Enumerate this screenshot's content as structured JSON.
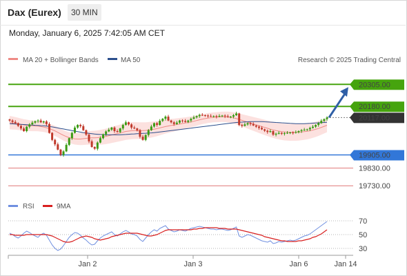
{
  "header": {
    "instrument": "Dax (Eurex)",
    "timeframe": "30 MIN",
    "datetime": "Monday, January 6, 2025 7:42:05 AM CET",
    "copyright": "Research © 2025 Trading Central"
  },
  "colors": {
    "up": "#3a9b14",
    "down": "#c0392b",
    "ma20": "#ef8a85",
    "bands": "#f9c9c5",
    "ma50": "#2b4e8c",
    "resistance": "#46a40e",
    "support_main": "#3277d8",
    "support_minor": "#e07777",
    "price_tag": "#333333",
    "rsi": "#6f8fe0",
    "rsi_ma": "#d81f1f",
    "arrow": "#2f5fa6"
  },
  "chart_data": [
    {
      "type": "candlestick",
      "title": "Dax (Eurex)",
      "timeframe": "30 MIN",
      "x_ticks": [
        "Jan 2",
        "Jan 3",
        "Jan 6",
        "Jan 14"
      ],
      "ylim": [
        19680,
        20400
      ],
      "legend": [
        "MA 20 + Bollinger Bands",
        "MA 50"
      ],
      "legend_position": "top-left",
      "levels": [
        {
          "label": "20305.00",
          "value": 20305,
          "kind": "resistance"
        },
        {
          "label": "20180.00",
          "value": 20180,
          "kind": "resistance"
        },
        {
          "label": "20117.00",
          "value": 20117,
          "kind": "current"
        },
        {
          "label": "19905.00",
          "value": 19905,
          "kind": "support_main"
        },
        {
          "label": "19830.00",
          "value": 19830,
          "kind": "support_minor"
        },
        {
          "label": "19730.00",
          "value": 19730,
          "kind": "support_minor"
        }
      ],
      "close": [
        20100,
        20092,
        20085,
        20070,
        20055,
        20040,
        20065,
        20078,
        20088,
        20096,
        20100,
        20090,
        20095,
        20080,
        20030,
        19990,
        19965,
        19935,
        19905,
        19925,
        19962,
        20000,
        20030,
        20060,
        20075,
        20068,
        20045,
        20020,
        19982,
        19950,
        19940,
        19975,
        20000,
        20022,
        20038,
        20048,
        20060,
        20040,
        20035,
        20055,
        20075,
        20090,
        20078,
        20060,
        20055,
        20045,
        20008,
        19990,
        20018,
        20045,
        20066,
        20085,
        20075,
        20098,
        20110,
        20122,
        20100,
        20090,
        20080,
        20088,
        20100,
        20098,
        20092,
        20100,
        20110,
        20118,
        20125,
        20132,
        20130,
        20128,
        20126,
        20124,
        20125,
        20122,
        20126,
        20128,
        20124,
        20120,
        20122,
        20130,
        20140,
        20075,
        20070,
        20078,
        20085,
        20080,
        20072,
        20065,
        20058,
        20050,
        20042,
        20035,
        20040,
        20020,
        20025,
        20030,
        20025,
        20028,
        20030,
        20032,
        20030,
        20034,
        20040,
        20045,
        20048,
        20050,
        20058,
        20065,
        20075,
        20085,
        20098,
        20108,
        20117
      ],
      "ma20": [
        20088,
        20086,
        20084,
        20081,
        20078,
        20075,
        20073,
        20071,
        20070,
        20069,
        20068,
        20066,
        20063,
        20059,
        20054,
        20048,
        20041,
        20033,
        20024,
        20016,
        20009,
        20003,
        19999,
        19996,
        19995,
        19995,
        19997,
        19999,
        20001,
        20002,
        20002,
        20003,
        20005,
        20007,
        20010,
        20014,
        20018,
        20022,
        20026,
        20030,
        20034,
        20038,
        20040,
        20042,
        20043,
        20043,
        20043,
        20043,
        20044,
        20046,
        20048,
        20051,
        20054,
        20058,
        20062,
        20066,
        20069,
        20072,
        20074,
        20077,
        20080,
        20083,
        20086,
        20089,
        20092,
        20096,
        20100,
        20104,
        20108,
        20111,
        20114,
        20116,
        20118,
        20119,
        20120,
        20121,
        20121,
        20120,
        20118,
        20115,
        20111,
        20106,
        20101,
        20096,
        20091,
        20086,
        20081,
        20076,
        20071,
        20066,
        20061,
        20056,
        20051,
        20047,
        20043,
        20040,
        20037,
        20035,
        20034,
        20033,
        20033,
        20033,
        20034,
        20035,
        20037,
        20039,
        20042,
        20046,
        20050,
        20055,
        20061,
        20067,
        20073
      ],
      "ma50": [
        20082,
        20081,
        20080,
        20079,
        20078,
        20077,
        20076,
        20075,
        20074,
        20073,
        20072,
        20071,
        20070,
        20068,
        20066,
        20064,
        20061,
        20058,
        20055,
        20052,
        20049,
        20046,
        20043,
        20040,
        20037,
        20034,
        20031,
        20029,
        20027,
        20025,
        20023,
        20022,
        20021,
        20020,
        20019,
        20019,
        20019,
        20019,
        20019,
        20019,
        20020,
        20021,
        20022,
        20023,
        20024,
        20025,
        20026,
        20027,
        20028,
        20029,
        20030,
        20031,
        20033,
        20035,
        20037,
        20039,
        20041,
        20043,
        20045,
        20047,
        20049,
        20051,
        20053,
        20055,
        20057,
        20059,
        20061,
        20063,
        20065,
        20067,
        20069,
        20071,
        20073,
        20075,
        20077,
        20079,
        20081,
        20083,
        20085,
        20087,
        20089,
        20090,
        20091,
        20092,
        20093,
        20094,
        20094,
        20094,
        20094,
        20094,
        20093,
        20092,
        20091,
        20090,
        20089,
        20088,
        20087,
        20086,
        20085,
        20084,
        20083,
        20082,
        20082,
        20082,
        20082,
        20083,
        20084,
        20085,
        20086,
        20087,
        20088,
        20089,
        20090
      ]
    },
    {
      "type": "line",
      "title": "RSI",
      "legend": [
        "RSI",
        "9MA"
      ],
      "ylim": [
        20,
        80
      ],
      "y_ticks": [
        70,
        50,
        30
      ],
      "rsi": [
        52,
        50,
        47,
        45,
        48,
        52,
        55,
        53,
        50,
        48,
        46,
        50,
        52,
        49,
        42,
        35,
        30,
        27,
        29,
        34,
        40,
        46,
        50,
        53,
        52,
        49,
        45,
        42,
        38,
        35,
        36,
        41,
        45,
        48,
        50,
        52,
        54,
        50,
        48,
        51,
        54,
        56,
        54,
        51,
        50,
        48,
        43,
        40,
        45,
        50,
        54,
        57,
        55,
        59,
        61,
        63,
        58,
        56,
        54,
        55,
        57,
        56,
        55,
        57,
        59,
        60,
        61,
        62,
        61,
        60,
        59,
        58,
        58,
        57,
        58,
        58,
        57,
        56,
        57,
        59,
        61,
        48,
        46,
        48,
        50,
        49,
        47,
        45,
        43,
        41,
        40,
        39,
        41,
        37,
        38,
        40,
        39,
        40,
        41,
        42,
        41,
        42,
        44,
        46,
        48,
        49,
        51,
        54,
        57,
        60,
        63,
        66,
        69
      ],
      "rsi_ma": [
        50,
        50,
        49,
        49,
        49,
        49,
        50,
        50,
        50,
        50,
        50,
        50,
        50,
        50,
        49,
        48,
        46,
        44,
        42,
        40,
        39,
        39,
        40,
        42,
        44,
        46,
        47,
        48,
        47,
        46,
        44,
        43,
        42,
        43,
        44,
        45,
        47,
        48,
        49,
        50,
        51,
        52,
        52,
        52,
        52,
        52,
        51,
        50,
        49,
        48,
        48,
        49,
        50,
        52,
        54,
        56,
        57,
        57,
        57,
        57,
        57,
        57,
        57,
        57,
        57,
        58,
        58,
        59,
        59,
        60,
        60,
        60,
        60,
        60,
        59,
        59,
        59,
        58,
        58,
        58,
        58,
        57,
        56,
        55,
        54,
        53,
        52,
        51,
        50,
        49,
        47,
        46,
        45,
        44,
        43,
        42,
        41,
        41,
        40,
        40,
        40,
        40,
        41,
        41,
        42,
        43,
        44,
        46,
        47,
        49,
        51,
        54,
        57
      ]
    }
  ]
}
